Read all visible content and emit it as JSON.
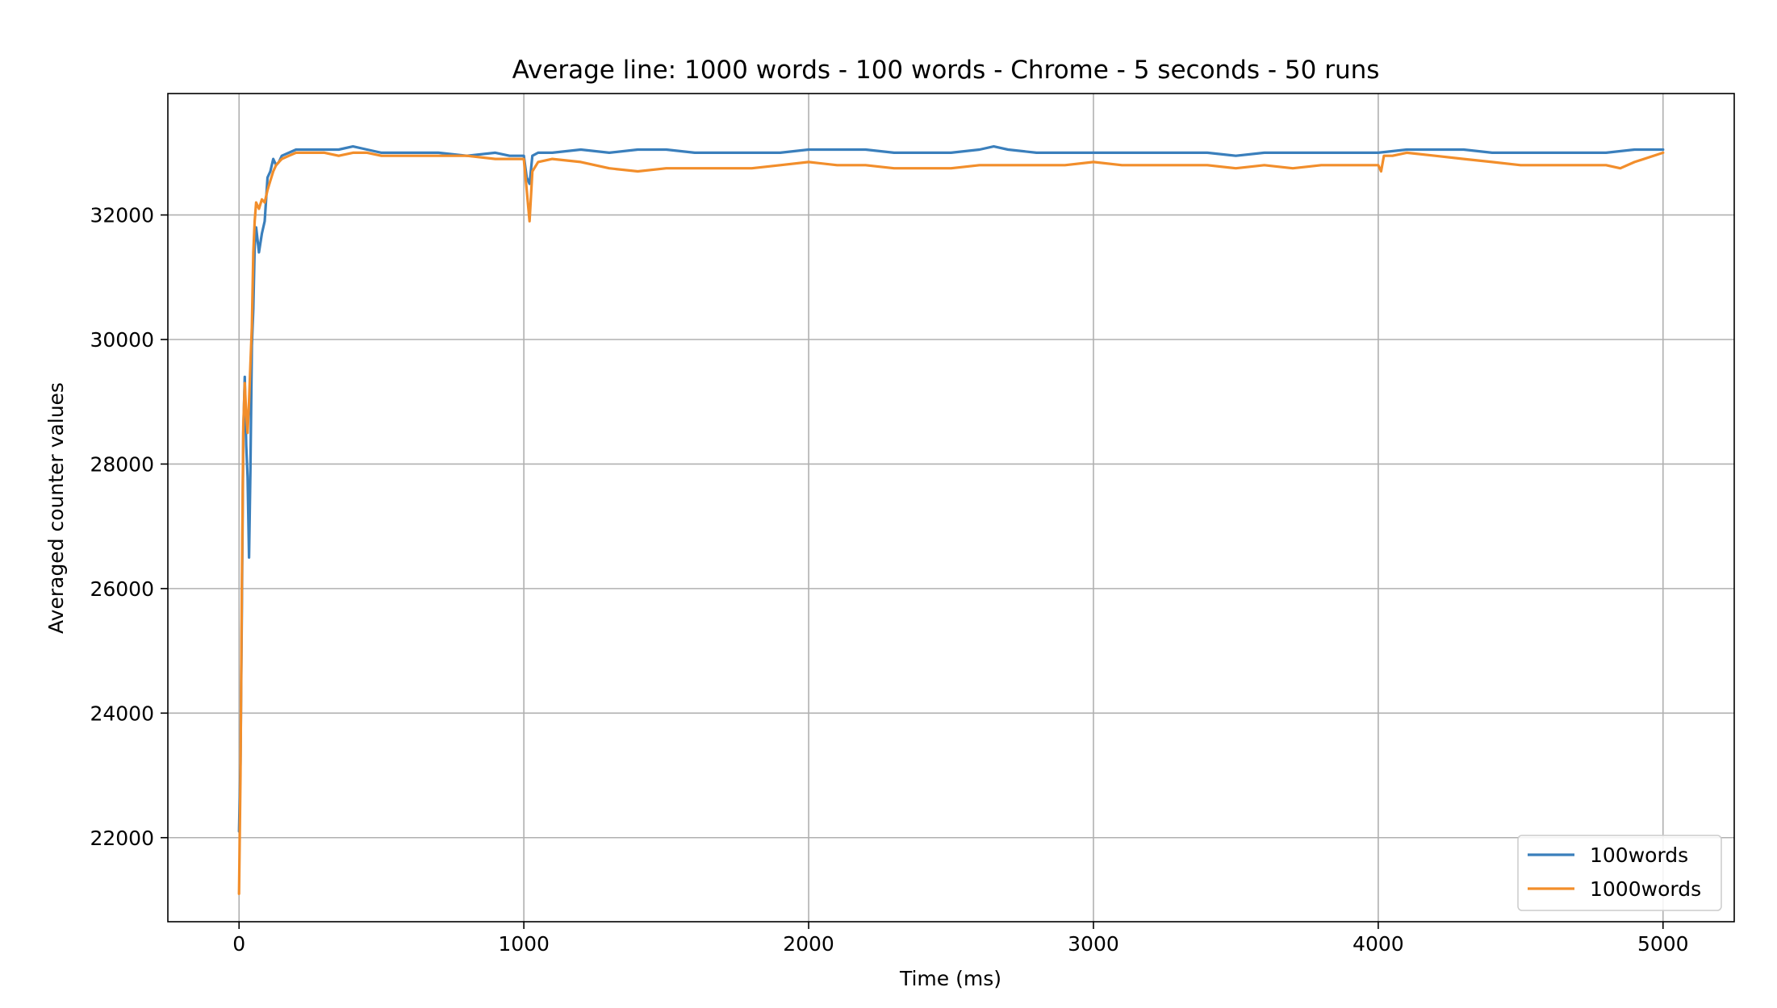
{
  "chart_data": {
    "type": "line",
    "title": "Average line: 1000 words -  100 words - Chrome - 5 seconds - 50 runs",
    "xlabel": "Time (ms)",
    "ylabel": "Averaged counter values",
    "xlim": [
      -250,
      5250
    ],
    "ylim": [
      20650,
      33950
    ],
    "xticks": [
      0,
      1000,
      2000,
      3000,
      4000,
      5000
    ],
    "yticks": [
      22000,
      24000,
      26000,
      28000,
      30000,
      32000
    ],
    "grid": true,
    "legend_position": "lower right",
    "series": [
      {
        "name": "100words",
        "color": "#3a7fbc",
        "x": [
          0,
          5,
          10,
          15,
          20,
          25,
          30,
          35,
          40,
          45,
          50,
          55,
          60,
          70,
          80,
          90,
          100,
          110,
          120,
          130,
          140,
          150,
          175,
          200,
          250,
          300,
          350,
          400,
          450,
          500,
          600,
          700,
          800,
          900,
          950,
          1000,
          1010,
          1020,
          1030,
          1050,
          1100,
          1200,
          1300,
          1400,
          1500,
          1600,
          1700,
          1800,
          1900,
          2000,
          2100,
          2200,
          2300,
          2400,
          2500,
          2600,
          2650,
          2700,
          2800,
          2900,
          3000,
          3100,
          3200,
          3300,
          3400,
          3500,
          3600,
          3700,
          3800,
          3900,
          4000,
          4100,
          4200,
          4300,
          4400,
          4500,
          4600,
          4700,
          4800,
          4900,
          5000
        ],
        "y": [
          22100,
          23200,
          25800,
          28500,
          29400,
          28300,
          27800,
          26500,
          27900,
          29900,
          30500,
          31500,
          31800,
          31400,
          31700,
          31900,
          32600,
          32700,
          32900,
          32800,
          32850,
          32950,
          33000,
          33050,
          33050,
          33050,
          33050,
          33100,
          33050,
          33000,
          33000,
          33000,
          32950,
          33000,
          32950,
          32950,
          32600,
          32500,
          32950,
          33000,
          33000,
          33050,
          33000,
          33050,
          33050,
          33000,
          33000,
          33000,
          33000,
          33050,
          33050,
          33050,
          33000,
          33000,
          33000,
          33050,
          33100,
          33050,
          33000,
          33000,
          33000,
          33000,
          33000,
          33000,
          33000,
          32950,
          33000,
          33000,
          33000,
          33000,
          33000,
          33050,
          33050,
          33050,
          33000,
          33000,
          33000,
          33000,
          33000,
          33050,
          33050
        ]
      },
      {
        "name": "1000words",
        "color": "#f28e2b",
        "x": [
          0,
          5,
          10,
          15,
          20,
          25,
          30,
          35,
          40,
          45,
          50,
          55,
          60,
          70,
          80,
          90,
          100,
          110,
          120,
          130,
          140,
          150,
          175,
          200,
          250,
          300,
          350,
          400,
          450,
          500,
          600,
          700,
          800,
          900,
          950,
          1000,
          1010,
          1020,
          1030,
          1050,
          1100,
          1200,
          1300,
          1400,
          1500,
          1600,
          1700,
          1800,
          1900,
          2000,
          2100,
          2200,
          2300,
          2400,
          2500,
          2600,
          2650,
          2700,
          2800,
          2900,
          3000,
          3100,
          3200,
          3300,
          3400,
          3500,
          3600,
          3700,
          3800,
          3900,
          4000,
          4010,
          4020,
          4050,
          4100,
          4200,
          4300,
          4400,
          4500,
          4600,
          4700,
          4800,
          4850,
          4900,
          5000
        ],
        "y": [
          21100,
          23000,
          26200,
          28600,
          29300,
          28800,
          28500,
          29000,
          29600,
          30200,
          31400,
          31900,
          32200,
          32100,
          32250,
          32200,
          32400,
          32550,
          32700,
          32800,
          32850,
          32900,
          32950,
          33000,
          33000,
          33000,
          32950,
          33000,
          33000,
          32950,
          32950,
          32950,
          32950,
          32900,
          32900,
          32900,
          32400,
          31900,
          32700,
          32850,
          32900,
          32850,
          32750,
          32700,
          32750,
          32750,
          32750,
          32750,
          32800,
          32850,
          32800,
          32800,
          32750,
          32750,
          32750,
          32800,
          32800,
          32800,
          32800,
          32800,
          32850,
          32800,
          32800,
          32800,
          32800,
          32750,
          32800,
          32750,
          32800,
          32800,
          32800,
          32700,
          32950,
          32950,
          33000,
          32950,
          32900,
          32850,
          32800,
          32800,
          32800,
          32800,
          32750,
          32850,
          33000
        ]
      }
    ]
  }
}
